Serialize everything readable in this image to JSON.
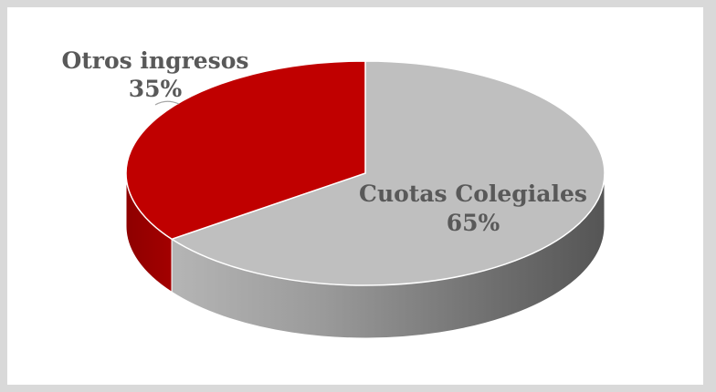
{
  "chart_data": {
    "type": "pie",
    "style": "3d",
    "title": "",
    "slices": [
      {
        "label": "Cuotas Colegiales",
        "value": 65,
        "value_label": "65%",
        "color": "#bfbfbf"
      },
      {
        "label": "Otros ingresos",
        "value": 35,
        "value_label": "35%",
        "color": "#c00000"
      }
    ],
    "legend": "none"
  }
}
